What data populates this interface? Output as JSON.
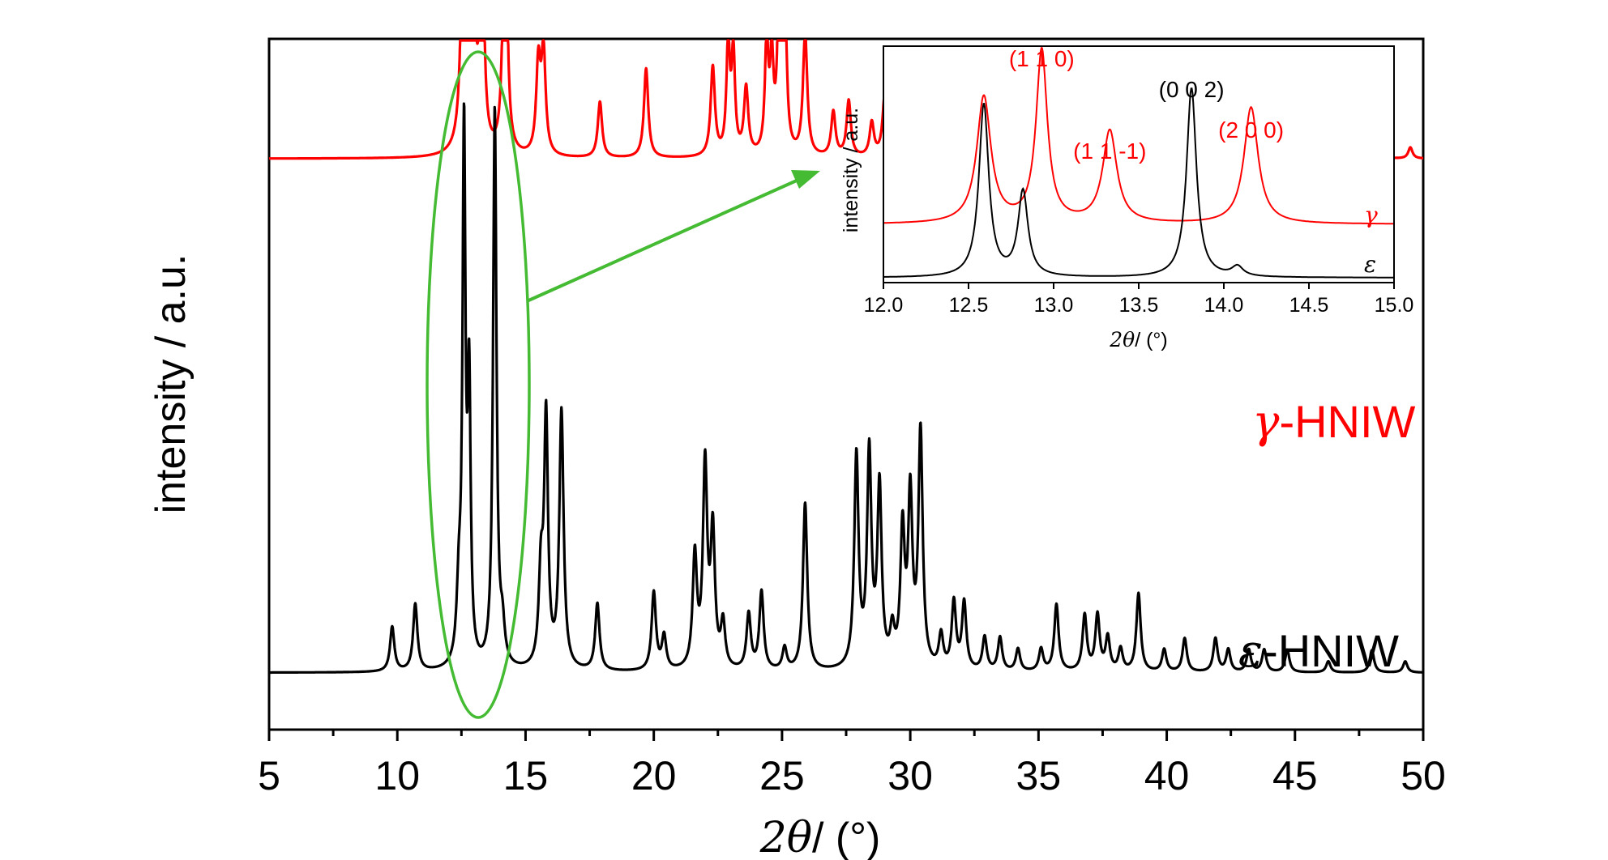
{
  "chart_data": [
    {
      "type": "line",
      "title": "",
      "xlabel_symbol": "2θ",
      "xlabel_unit": "/ (°)",
      "ylabel": "intensity / a.u.",
      "xlim": [
        5,
        50
      ],
      "xticks": [
        5,
        10,
        15,
        20,
        25,
        30,
        35,
        40,
        45,
        50
      ],
      "yticks": [],
      "grid": false,
      "series": [
        {
          "symbol": "γ",
          "name": "-HNIW",
          "color": "#ff0000",
          "baseline": 0.5,
          "peaks": [
            [
              12.6,
              0.3,
              0.1
            ],
            [
              12.9,
              0.5,
              0.07
            ],
            [
              13.3,
              0.22,
              0.09
            ],
            [
              14.2,
              0.28,
              0.09
            ],
            [
              15.5,
              0.08,
              0.1
            ],
            [
              15.7,
              0.09,
              0.1
            ],
            [
              17.9,
              0.05,
              0.1
            ],
            [
              19.7,
              0.08,
              0.1
            ],
            [
              22.3,
              0.08,
              0.1
            ],
            [
              22.9,
              0.1,
              0.08
            ],
            [
              23.1,
              0.09,
              0.08
            ],
            [
              23.6,
              0.06,
              0.1
            ],
            [
              24.4,
              0.1,
              0.08
            ],
            [
              24.6,
              0.08,
              0.08
            ],
            [
              24.9,
              0.17,
              0.08
            ],
            [
              25.1,
              0.16,
              0.08
            ],
            [
              25.9,
              0.11,
              0.1
            ],
            [
              27.0,
              0.04,
              0.1
            ],
            [
              27.6,
              0.05,
              0.1
            ],
            [
              28.5,
              0.03,
              0.1
            ],
            [
              29.0,
              0.05,
              0.1
            ],
            [
              29.4,
              0.09,
              0.1
            ],
            [
              30.6,
              0.06,
              0.1
            ],
            [
              31.4,
              0.03,
              0.1
            ],
            [
              32.2,
              0.08,
              0.1
            ],
            [
              33.6,
              0.03,
              0.1
            ],
            [
              34.1,
              0.04,
              0.1
            ],
            [
              36.5,
              0.03,
              0.1
            ],
            [
              37.3,
              0.05,
              0.1
            ],
            [
              38.4,
              0.04,
              0.1
            ],
            [
              38.9,
              0.03,
              0.1
            ],
            [
              40.1,
              0.02,
              0.1
            ],
            [
              41.7,
              0.02,
              0.1
            ],
            [
              43.1,
              0.02,
              0.1
            ],
            [
              45.0,
              0.02,
              0.1
            ],
            [
              46.5,
              0.02,
              0.1
            ],
            [
              48.2,
              0.02,
              0.1
            ],
            [
              49.5,
              0.01,
              0.1
            ]
          ]
        },
        {
          "symbol": "ε",
          "name": "-HNIW",
          "color": "#000000",
          "baseline": 0.04,
          "peaks": [
            [
              9.8,
              0.04,
              0.1
            ],
            [
              10.7,
              0.06,
              0.1
            ],
            [
              12.4,
              0.06,
              0.1
            ],
            [
              12.6,
              0.47,
              0.07
            ],
            [
              12.8,
              0.24,
              0.07
            ],
            [
              13.8,
              0.5,
              0.08
            ],
            [
              14.1,
              0.03,
              0.1
            ],
            [
              15.6,
              0.08,
              0.1
            ],
            [
              15.8,
              0.22,
              0.09
            ],
            [
              16.4,
              0.23,
              0.1
            ],
            [
              17.8,
              0.06,
              0.1
            ],
            [
              20.0,
              0.07,
              0.1
            ],
            [
              20.4,
              0.03,
              0.1
            ],
            [
              21.6,
              0.1,
              0.1
            ],
            [
              22.0,
              0.18,
              0.1
            ],
            [
              22.3,
              0.12,
              0.1
            ],
            [
              22.7,
              0.04,
              0.1
            ],
            [
              23.7,
              0.05,
              0.1
            ],
            [
              24.2,
              0.07,
              0.1
            ],
            [
              25.1,
              0.02,
              0.1
            ],
            [
              25.9,
              0.15,
              0.1
            ],
            [
              27.9,
              0.19,
              0.1
            ],
            [
              28.4,
              0.19,
              0.1
            ],
            [
              28.8,
              0.16,
              0.1
            ],
            [
              29.3,
              0.03,
              0.1
            ],
            [
              29.7,
              0.12,
              0.1
            ],
            [
              30.0,
              0.15,
              0.1
            ],
            [
              30.4,
              0.21,
              0.1
            ],
            [
              31.2,
              0.03,
              0.1
            ],
            [
              31.7,
              0.06,
              0.1
            ],
            [
              32.1,
              0.06,
              0.1
            ],
            [
              32.9,
              0.03,
              0.1
            ],
            [
              33.5,
              0.03,
              0.1
            ],
            [
              34.2,
              0.02,
              0.1
            ],
            [
              35.1,
              0.02,
              0.1
            ],
            [
              35.7,
              0.06,
              0.1
            ],
            [
              36.8,
              0.05,
              0.1
            ],
            [
              37.3,
              0.05,
              0.1
            ],
            [
              37.7,
              0.03,
              0.1
            ],
            [
              38.2,
              0.02,
              0.1
            ],
            [
              38.9,
              0.07,
              0.1
            ],
            [
              39.9,
              0.02,
              0.1
            ],
            [
              40.7,
              0.03,
              0.1
            ],
            [
              41.9,
              0.03,
              0.1
            ],
            [
              42.4,
              0.02,
              0.1
            ],
            [
              43.2,
              0.02,
              0.1
            ],
            [
              43.8,
              0.02,
              0.1
            ],
            [
              44.7,
              0.02,
              0.1
            ],
            [
              46.3,
              0.01,
              0.1
            ],
            [
              48.0,
              0.02,
              0.1
            ],
            [
              49.3,
              0.01,
              0.1
            ]
          ]
        }
      ]
    },
    {
      "type": "line",
      "title": "",
      "xlabel_symbol": "2θ",
      "xlabel_unit": "/ (°)",
      "ylabel": "intensity / a.u.",
      "xlim": [
        12.0,
        15.0
      ],
      "xticks": [
        "12.0",
        "12.5",
        "13.0",
        "13.5",
        "14.0",
        "14.5",
        "15.0"
      ],
      "yticks": [],
      "grid": false,
      "series": [
        {
          "symbol": "γ",
          "color": "#ff0000",
          "baseline": 0.22,
          "peaks": [
            [
              12.59,
              0.52,
              0.05
            ],
            [
              12.93,
              0.71,
              0.04
            ],
            [
              13.33,
              0.38,
              0.05
            ],
            [
              14.16,
              0.48,
              0.05
            ]
          ]
        },
        {
          "symbol": "ε",
          "color": "#000000",
          "baseline": 0.0,
          "peaks": [
            [
              12.59,
              0.71,
              0.035
            ],
            [
              12.82,
              0.35,
              0.035
            ],
            [
              13.81,
              0.78,
              0.035
            ],
            [
              14.08,
              0.04,
              0.04
            ]
          ]
        }
      ],
      "annotations": [
        {
          "text": "(1 1 0)",
          "x": 12.93,
          "color": "#ff0000"
        },
        {
          "text": "(0 0 2)",
          "x": 13.81,
          "color": "#000000"
        },
        {
          "text": "(1 1 -1)",
          "x": 13.33,
          "color": "#ff0000"
        },
        {
          "text": "(2 0 0)",
          "x": 14.16,
          "color": "#ff0000"
        }
      ]
    }
  ],
  "highlight": {
    "shape": "ellipse",
    "color": "#44bb33",
    "x_range": [
      11.2,
      15.1
    ]
  }
}
